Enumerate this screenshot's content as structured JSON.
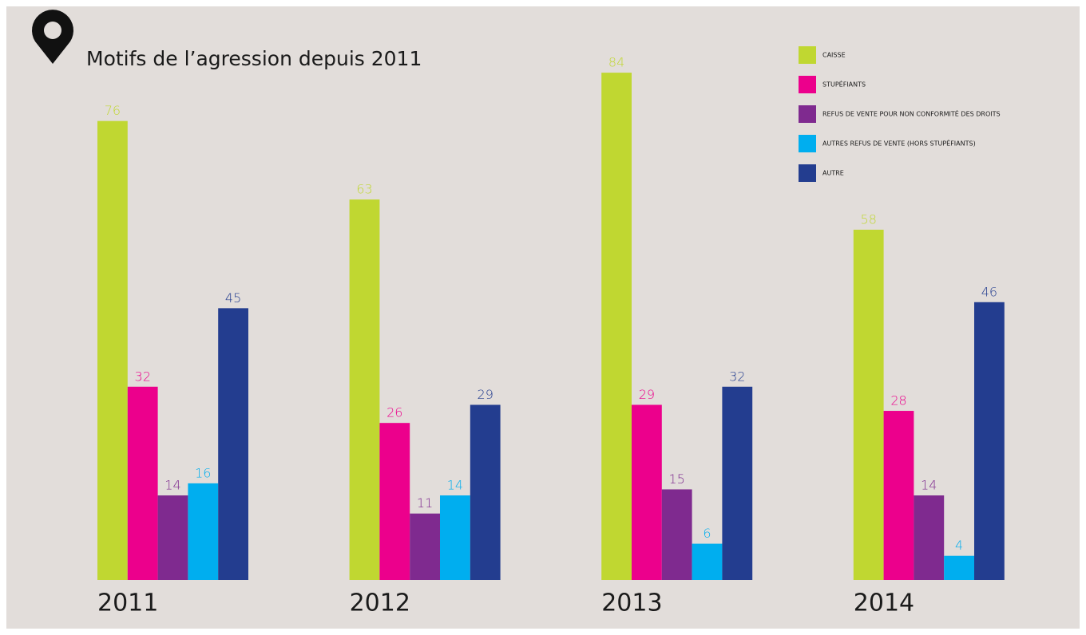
{
  "chart_data": {
    "type": "bar",
    "title": "Motifs de l’agression depuis 2011",
    "categories": [
      "2011",
      "2012",
      "2013",
      "2014"
    ],
    "series": [
      {
        "name": "CAISSE",
        "color": "#c0d731",
        "values": [
          76,
          63,
          84,
          58
        ]
      },
      {
        "name": "STUPÉFIANTS",
        "color": "#ec008c",
        "values": [
          32,
          26,
          29,
          28
        ]
      },
      {
        "name": "REFUS DE VENTE POUR NON CONFORMITÉ DES DROITS",
        "color": "#7f2a8f",
        "values": [
          14,
          11,
          15,
          14
        ]
      },
      {
        "name": "AUTRES REFUS DE VENTE (HORS STUPÉFIANTS)",
        "color": "#00aeef",
        "values": [
          16,
          14,
          6,
          4
        ]
      },
      {
        "name": "AUTRE",
        "color": "#233d8f",
        "values": [
          45,
          29,
          32,
          46
        ]
      }
    ]
  }
}
